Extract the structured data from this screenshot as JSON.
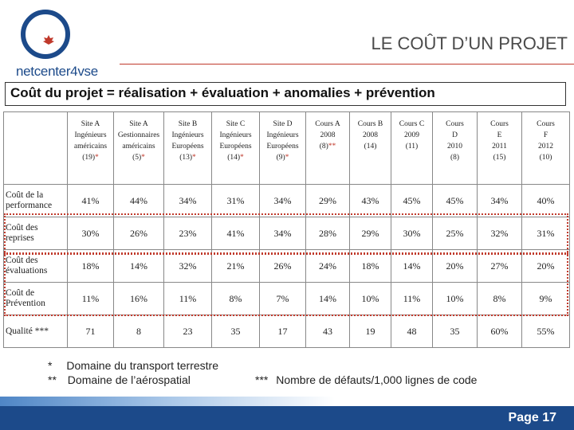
{
  "logo": {
    "text": "netcenter4vse"
  },
  "header": {
    "title": "LE COÛT D’UN PROJET"
  },
  "formula": "Coût du projet = réalisation + évaluation + anomalies + prévention",
  "table": {
    "columns": [
      {
        "l1": "Site A",
        "l2": "Ingénieurs",
        "l3": "américains",
        "l4": "(19)",
        "mark": "*"
      },
      {
        "l1": "Site A",
        "l2": "Gestionnaires",
        "l3": "américains",
        "l4": "(5)",
        "mark": "*"
      },
      {
        "l1": "Site B",
        "l2": "Ingénieurs",
        "l3": "Européens",
        "l4": "(13)",
        "mark": "*"
      },
      {
        "l1": "Site C",
        "l2": "Ingénieurs",
        "l3": "Européens",
        "l4": "(14)",
        "mark": "*"
      },
      {
        "l1": "Site D",
        "l2": "Ingénieurs",
        "l3": "Européens",
        "l4": "(9)",
        "mark": "*"
      },
      {
        "l1": "Cours A",
        "l2": "2008",
        "l3": "(8)",
        "l4": "",
        "mark": "**"
      },
      {
        "l1": "Cours B",
        "l2": "2008",
        "l3": "(14)",
        "l4": "",
        "mark": ""
      },
      {
        "l1": "Cours C",
        "l2": "2009",
        "l3": "(11)",
        "l4": "",
        "mark": ""
      },
      {
        "l1": "Cours",
        "l2": "D",
        "l3": "2010",
        "l4": "(8)",
        "mark": ""
      },
      {
        "l1": "Cours",
        "l2": "E",
        "l3": "2011",
        "l4": "(15)",
        "mark": ""
      },
      {
        "l1": "Cours",
        "l2": "F",
        "l3": "2012",
        "l4": "(10)",
        "mark": ""
      }
    ],
    "rows": [
      {
        "label": "Coût de la performance",
        "values": [
          "41%",
          "44%",
          "34%",
          "31%",
          "34%",
          "29%",
          "43%",
          "45%",
          "45%",
          "34%",
          "40%"
        ]
      },
      {
        "label": "Coût des reprises",
        "values": [
          "30%",
          "26%",
          "23%",
          "41%",
          "34%",
          "28%",
          "29%",
          "30%",
          "25%",
          "32%",
          "31%"
        ]
      },
      {
        "label": "Coût des évaluations",
        "values": [
          "18%",
          "14%",
          "32%",
          "21%",
          "26%",
          "24%",
          "18%",
          "14%",
          "20%",
          "27%",
          "20%"
        ]
      },
      {
        "label": "Coût de Prévention",
        "values": [
          "11%",
          "16%",
          "11%",
          "8%",
          "7%",
          "14%",
          "10%",
          "11%",
          "10%",
          "8%",
          "9%"
        ]
      },
      {
        "label": "Qualité ***",
        "values": [
          "71",
          "8",
          "23",
          "35",
          "17",
          "43",
          "19",
          "48",
          "35",
          "60%",
          "55%"
        ]
      }
    ]
  },
  "footnotes": {
    "f1_mark": "*",
    "f1_text": "Domaine du transport terrestre",
    "f2_mark": "**",
    "f2_text": "Domaine de l’aérospatial",
    "f3_mark": "***",
    "f3_text": "Nombre de défauts/1,000 lignes de code"
  },
  "footer": {
    "page": "Page 17"
  },
  "colors": {
    "brand_blue": "#1c4a8a",
    "accent_red": "#c0392b"
  }
}
